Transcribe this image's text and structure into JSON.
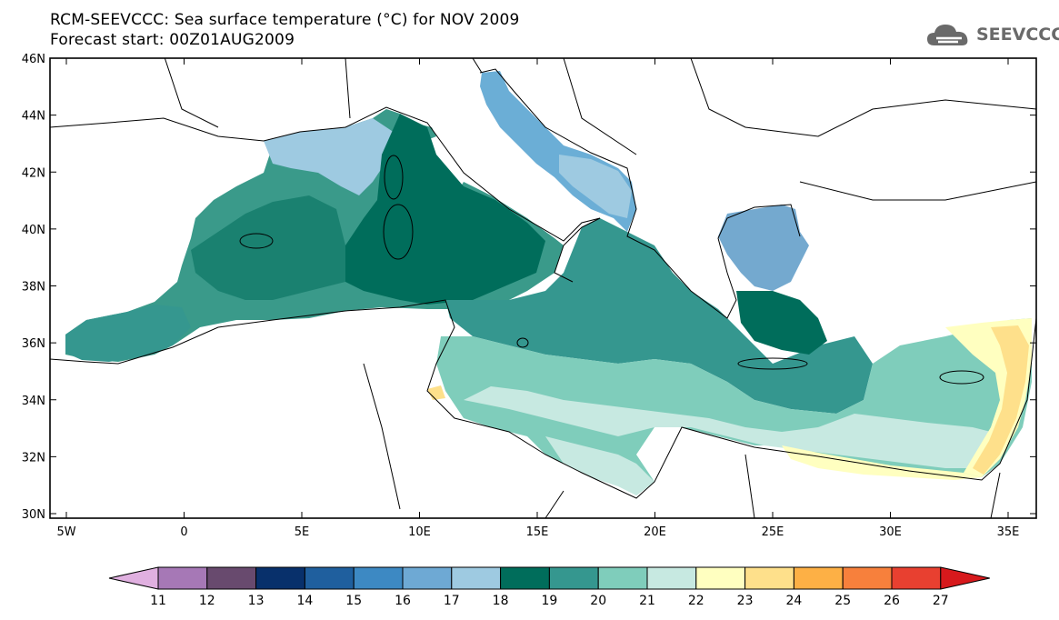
{
  "header": {
    "title_line1": "RCM-SEEVCCC: Sea surface temperature (°C) for NOV 2009",
    "title_line2": "Forecast start: 00Z01AUG2009"
  },
  "logo": {
    "text": "SEEVCCC",
    "icon": "cloud-logo-icon"
  },
  "map": {
    "lat_labels": [
      "46N",
      "44N",
      "42N",
      "40N",
      "38N",
      "36N",
      "34N",
      "32N",
      "30N"
    ],
    "lon_labels": [
      "5W",
      "0",
      "5E",
      "10E",
      "15E",
      "20E",
      "25E",
      "30E",
      "35E"
    ],
    "regions": [
      {
        "name": "mediterranean-sea",
        "color": "#7fcdbb"
      },
      {
        "name": "western-mediterranean",
        "color": "#3a9a8a"
      },
      {
        "name": "tyrrhenian-sea",
        "color": "#006d5b"
      },
      {
        "name": "adriatic-sea",
        "color": "#6baed6"
      },
      {
        "name": "aegean-sea",
        "color": "#74a9cf"
      },
      {
        "name": "levantine-sea",
        "color": "#c7e9e1"
      }
    ]
  },
  "colorbar": {
    "labels": [
      "11",
      "12",
      "13",
      "14",
      "15",
      "16",
      "17",
      "18",
      "19",
      "20",
      "21",
      "22",
      "23",
      "24",
      "25",
      "26",
      "27"
    ],
    "colors": [
      "#e0b0e0",
      "#a678b6",
      "#684a6e",
      "#08306b",
      "#1f5f9e",
      "#3d89c3",
      "#6ea9d4",
      "#9ecae1",
      "#006d5b",
      "#35978f",
      "#7fcdbb",
      "#c7e9e1",
      "#ffffc0",
      "#fee08b",
      "#fdb045",
      "#f7803c",
      "#e84030",
      "#d7191c"
    ]
  }
}
